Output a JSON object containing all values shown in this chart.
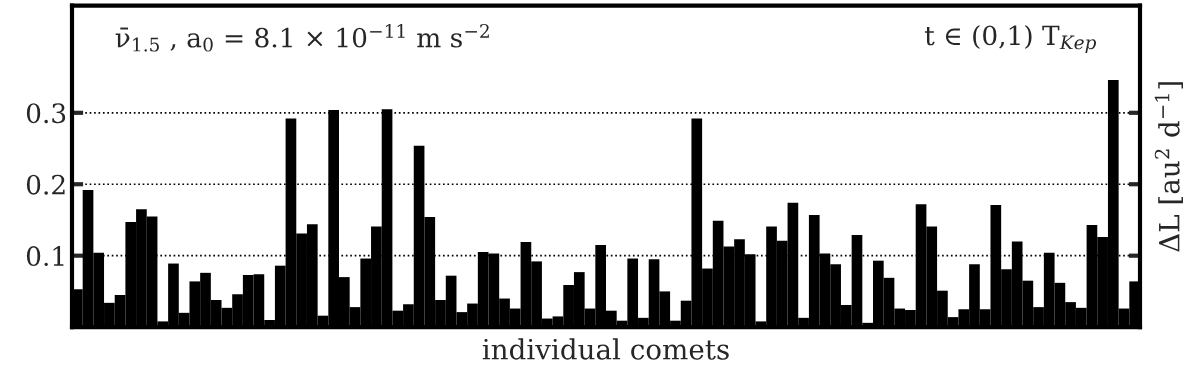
{
  "chart_data": {
    "type": "bar",
    "xlabel": "individual comets",
    "ylabel": "ΔL [au$^{2}$ d$^{−1}$]",
    "annotations": [
      "ν̄$_{1.5}$ , a$_{0}$ = 8.1 × 10$^{−11}$ m s$^{−2}$",
      "t ∈ (0,1) T$_{Kep}$"
    ],
    "categories": [
      null,
      null,
      null,
      null,
      null,
      null,
      null,
      null,
      null,
      null,
      null,
      null,
      null,
      null,
      null,
      null,
      null,
      null,
      null,
      null,
      null,
      null,
      null,
      null,
      null,
      null,
      null,
      null,
      null,
      null,
      null,
      null,
      null,
      null,
      null,
      null,
      null,
      null,
      null,
      null,
      null,
      null,
      null,
      null,
      null,
      null,
      null,
      null,
      null,
      null,
      null,
      null,
      null,
      null,
      null,
      null,
      null,
      null,
      null,
      null,
      null,
      null,
      null,
      null,
      null,
      null,
      null,
      null,
      null,
      null,
      null,
      null,
      null,
      null,
      null,
      null,
      null,
      null,
      null,
      null,
      null,
      null,
      null,
      null,
      null,
      null,
      null,
      null,
      null,
      null,
      null,
      null,
      null,
      null,
      null,
      null,
      null,
      null,
      null,
      null
    ],
    "values": [
      0.053,
      0.192,
      0.104,
      0.034,
      0.045,
      0.147,
      0.165,
      0.155,
      0.008,
      0.089,
      0.02,
      0.064,
      0.076,
      0.038,
      0.027,
      0.046,
      0.073,
      0.074,
      0.01,
      0.086,
      0.292,
      0.131,
      0.144,
      0.016,
      0.304,
      0.07,
      0.028,
      0.096,
      0.141,
      0.305,
      0.023,
      0.032,
      0.254,
      0.154,
      0.038,
      0.072,
      0.021,
      0.033,
      0.105,
      0.103,
      0.04,
      0.026,
      0.119,
      0.092,
      0.012,
      0.015,
      0.059,
      0.077,
      0.026,
      0.115,
      0.023,
      0.009,
      0.096,
      0.013,
      0.095,
      0.05,
      0.009,
      0.037,
      0.292,
      0.082,
      0.149,
      0.113,
      0.123,
      0.102,
      0.008,
      0.141,
      0.121,
      0.174,
      0.013,
      0.157,
      0.103,
      0.088,
      0.031,
      0.129,
      0.006,
      0.093,
      0.069,
      0.026,
      0.024,
      0.172,
      0.141,
      0.051,
      0.014,
      0.025,
      0.088,
      0.025,
      0.171,
      0.081,
      0.12,
      0.065,
      0.028,
      0.104,
      0.062,
      0.035,
      0.027,
      0.143,
      0.126,
      0.346,
      0.026,
      0.064
    ],
    "color": "#000000",
    "ylim": [
      0,
      0.45
    ],
    "yticks": [
      0.1,
      0.2,
      0.3
    ],
    "grid": "y",
    "tick_labels": "y"
  }
}
